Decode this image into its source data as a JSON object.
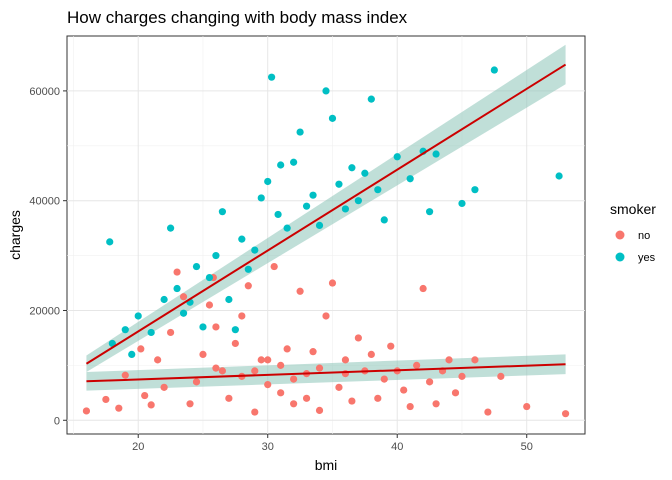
{
  "chart_data": {
    "type": "scatter",
    "title": "How charges changing with body mass index",
    "xlabel": "bmi",
    "ylabel": "charges",
    "xlim": [
      14.5,
      54.5
    ],
    "ylim": [
      -2500,
      70000
    ],
    "xticks": [
      20,
      30,
      40,
      50
    ],
    "yticks": [
      0,
      20000,
      40000,
      60000
    ],
    "grid": true,
    "legend": {
      "title": "smoker",
      "position": "right",
      "entries": [
        {
          "label": "no",
          "color": "#F8766D"
        },
        {
          "label": "yes",
          "color": "#00BFC4"
        }
      ]
    },
    "series": [
      {
        "name": "no",
        "color": "#F8766D",
        "points": [
          [
            16.0,
            1700
          ],
          [
            17.5,
            3800
          ],
          [
            18.5,
            2200
          ],
          [
            19,
            8200
          ],
          [
            20.2,
            13000
          ],
          [
            20.5,
            4500
          ],
          [
            21,
            2800
          ],
          [
            21.5,
            11000
          ],
          [
            22,
            6000
          ],
          [
            22.5,
            16000
          ],
          [
            23,
            27000
          ],
          [
            23.5,
            22500
          ],
          [
            24,
            3000
          ],
          [
            24.5,
            7000
          ],
          [
            25,
            12000
          ],
          [
            25.5,
            21000
          ],
          [
            25.8,
            26000
          ],
          [
            26,
            17000
          ],
          [
            26.5,
            9000
          ],
          [
            27,
            4000
          ],
          [
            27.5,
            14000
          ],
          [
            28,
            19000
          ],
          [
            28.5,
            24500
          ],
          [
            29,
            1500
          ],
          [
            29.5,
            11000
          ],
          [
            30,
            6500
          ],
          [
            30.5,
            28000
          ],
          [
            31,
            10000
          ],
          [
            31.5,
            13000
          ],
          [
            32,
            3000
          ],
          [
            32.5,
            23500
          ],
          [
            33,
            8500
          ],
          [
            33.5,
            12500
          ],
          [
            34,
            1800
          ],
          [
            34.5,
            19000
          ],
          [
            35,
            25000
          ],
          [
            35.5,
            6000
          ],
          [
            36,
            11000
          ],
          [
            36.5,
            3500
          ],
          [
            37,
            15000
          ],
          [
            37.5,
            9000
          ],
          [
            38,
            12000
          ],
          [
            38.5,
            4000
          ],
          [
            39,
            7500
          ],
          [
            39.5,
            13500
          ],
          [
            40,
            9000
          ],
          [
            40.5,
            5500
          ],
          [
            41,
            2500
          ],
          [
            41.5,
            10000
          ],
          [
            42,
            24000
          ],
          [
            42.5,
            7000
          ],
          [
            43,
            3000
          ],
          [
            43.5,
            9000
          ],
          [
            44,
            11000
          ],
          [
            44.5,
            5000
          ],
          [
            45,
            8000
          ],
          [
            46,
            11000
          ],
          [
            47,
            1500
          ],
          [
            48,
            8000
          ],
          [
            50,
            2500
          ],
          [
            53.0,
            1200
          ],
          [
            26,
            9500
          ],
          [
            28,
            8000
          ],
          [
            30,
            11000
          ],
          [
            32,
            7500
          ],
          [
            34,
            9500
          ],
          [
            36,
            8500
          ],
          [
            31,
            5000
          ],
          [
            33,
            4000
          ],
          [
            29,
            9000
          ]
        ]
      },
      {
        "name": "yes",
        "color": "#00BFC4",
        "points": [
          [
            17.8,
            32500
          ],
          [
            18,
            14000
          ],
          [
            19,
            16500
          ],
          [
            19.5,
            12000
          ],
          [
            20,
            19000
          ],
          [
            21,
            16000
          ],
          [
            22,
            22000
          ],
          [
            22.5,
            35000
          ],
          [
            23,
            24000
          ],
          [
            23.5,
            19500
          ],
          [
            24,
            21500
          ],
          [
            24.5,
            28000
          ],
          [
            25,
            17000
          ],
          [
            25.5,
            26000
          ],
          [
            26,
            30000
          ],
          [
            26.5,
            38000
          ],
          [
            27,
            22000
          ],
          [
            27.5,
            16500
          ],
          [
            28,
            33000
          ],
          [
            28.5,
            27500
          ],
          [
            29,
            31000
          ],
          [
            29.5,
            40500
          ],
          [
            30,
            43500
          ],
          [
            30.3,
            62500
          ],
          [
            30.8,
            37500
          ],
          [
            31,
            46500
          ],
          [
            31.5,
            35000
          ],
          [
            32,
            47000
          ],
          [
            32.5,
            52500
          ],
          [
            33,
            39000
          ],
          [
            33.5,
            41000
          ],
          [
            34,
            35500
          ],
          [
            34.5,
            60000
          ],
          [
            35,
            55000
          ],
          [
            35.5,
            43000
          ],
          [
            36,
            38500
          ],
          [
            36.5,
            46000
          ],
          [
            37,
            40000
          ],
          [
            37.5,
            45000
          ],
          [
            38,
            58500
          ],
          [
            38.5,
            42000
          ],
          [
            39,
            36500
          ],
          [
            40,
            48000
          ],
          [
            41,
            44000
          ],
          [
            42,
            49000
          ],
          [
            42.5,
            38000
          ],
          [
            43,
            48500
          ],
          [
            45,
            39500
          ],
          [
            46,
            42000
          ],
          [
            47.5,
            63800
          ],
          [
            52.5,
            44500
          ]
        ]
      }
    ],
    "trendlines": [
      {
        "name": "no",
        "color": "#CC0000",
        "x": [
          16,
          53
        ],
        "y": [
          7100,
          10200
        ],
        "band": [
          1700,
          1800
        ]
      },
      {
        "name": "yes",
        "color": "#CC0000",
        "x": [
          16,
          53
        ],
        "y": [
          10300,
          64800
        ],
        "band": [
          1500,
          3600
        ]
      }
    ]
  }
}
